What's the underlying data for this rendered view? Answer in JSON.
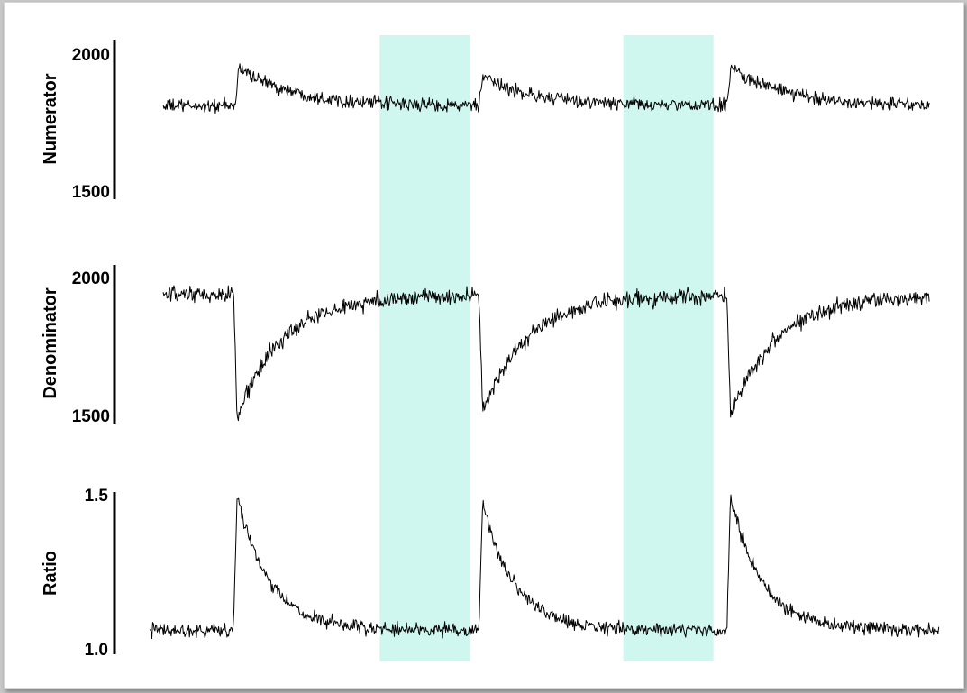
{
  "chart_data": {
    "type": "line",
    "shared_x_range": [
      0,
      850
    ],
    "highlight_color": "#cff7ef",
    "highlight_bands": [
      {
        "x_start": 240,
        "x_end": 340
      },
      {
        "x_start": 510,
        "x_end": 610
      }
    ],
    "panels": [
      {
        "id": "numerator",
        "ylabel": "Numerator",
        "ylim": [
          1500,
          2000
        ],
        "tick_labels": [
          "2000",
          "1500"
        ],
        "tick_values": [
          2000,
          1500
        ],
        "x_start": 0,
        "x_end": 850,
        "baseline": 1800,
        "noise": 20,
        "events": [
          {
            "x": 80,
            "peak": 1940,
            "tau": 60
          },
          {
            "x": 350,
            "peak": 1900,
            "tau": 60
          },
          {
            "x": 625,
            "peak": 1940,
            "tau": 60
          }
        ]
      },
      {
        "id": "denominator",
        "ylabel": "Denominator",
        "ylim": [
          1500,
          2000
        ],
        "tick_labels": [
          "2000",
          "1500"
        ],
        "tick_values": [
          2000,
          1500
        ],
        "x_start": 0,
        "x_end": 850,
        "baseline": 1930,
        "noise": 25,
        "events": [
          {
            "x": 78,
            "peak": 1500,
            "tau": 50
          },
          {
            "x": 350,
            "peak": 1520,
            "tau": 50
          },
          {
            "x": 625,
            "peak": 1510,
            "tau": 50
          }
        ]
      },
      {
        "id": "ratio",
        "ylabel": "Ratio",
        "ylim": [
          1.0,
          1.5
        ],
        "tick_labels": [
          "1.5",
          "1.0"
        ],
        "tick_values": [
          1.5,
          1.0
        ],
        "x_start": -15,
        "x_end": 860,
        "baseline": 1.06,
        "noise": 0.018,
        "events": [
          {
            "x": 78,
            "peak": 1.5,
            "tau": 35
          },
          {
            "x": 350,
            "peak": 1.47,
            "tau": 35
          },
          {
            "x": 625,
            "peak": 1.49,
            "tau": 35
          }
        ]
      }
    ]
  }
}
